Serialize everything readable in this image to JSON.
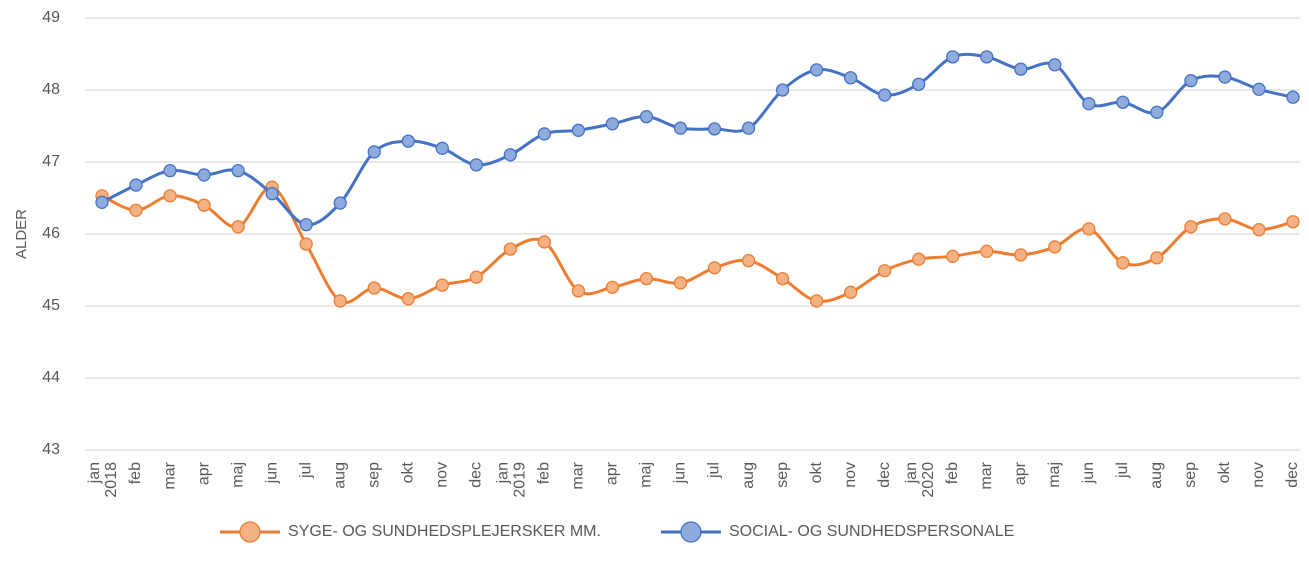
{
  "chart_data": {
    "type": "line",
    "y_label": "ALDER",
    "categories": [
      "jan",
      "feb",
      "mar",
      "apr",
      "maj",
      "jun",
      "jul",
      "aug",
      "sep",
      "okt",
      "nov",
      "dec",
      "jan",
      "feb",
      "mar",
      "apr",
      "maj",
      "jun",
      "jul",
      "aug",
      "sep",
      "okt",
      "nov",
      "dec",
      "jan",
      "feb",
      "mar",
      "apr",
      "maj",
      "jun",
      "jul",
      "aug",
      "sep",
      "okt",
      "nov",
      "dec"
    ],
    "category_groups": [
      "2018",
      "2019",
      "2020"
    ],
    "series": [
      {
        "name": "SYGE- OG SUNDHEDSPLEJERSKER MM.",
        "color": "#ed7d31",
        "marker_color": "#f4b183",
        "values": [
          46.53,
          46.33,
          46.53,
          46.4,
          46.1,
          46.65,
          45.86,
          45.07,
          45.25,
          45.1,
          45.29,
          45.4,
          45.79,
          45.89,
          45.21,
          45.26,
          45.38,
          45.32,
          45.53,
          45.63,
          45.38,
          45.07,
          45.19,
          45.49,
          45.65,
          45.69,
          45.76,
          45.71,
          45.82,
          46.07,
          45.6,
          45.67,
          46.1,
          46.21,
          46.06,
          46.17
        ]
      },
      {
        "name": "SOCIAL- OG SUNDHEDSPERSONALE",
        "color": "#4472c4",
        "marker_color": "#8faadc",
        "values": [
          46.44,
          46.68,
          46.88,
          46.82,
          46.88,
          46.56,
          46.13,
          46.43,
          47.14,
          47.29,
          47.19,
          46.96,
          47.1,
          47.39,
          47.44,
          47.53,
          47.63,
          47.47,
          47.46,
          47.47,
          48.0,
          48.28,
          48.17,
          47.93,
          48.08,
          48.46,
          48.46,
          48.29,
          48.35,
          47.81,
          47.83,
          47.69,
          48.13,
          48.18,
          48.01,
          47.9
        ]
      }
    ],
    "ylim": [
      43,
      49
    ],
    "yticks": [
      43,
      44,
      45,
      46,
      47,
      48,
      49
    ],
    "grid": true,
    "legend": "bottom"
  }
}
